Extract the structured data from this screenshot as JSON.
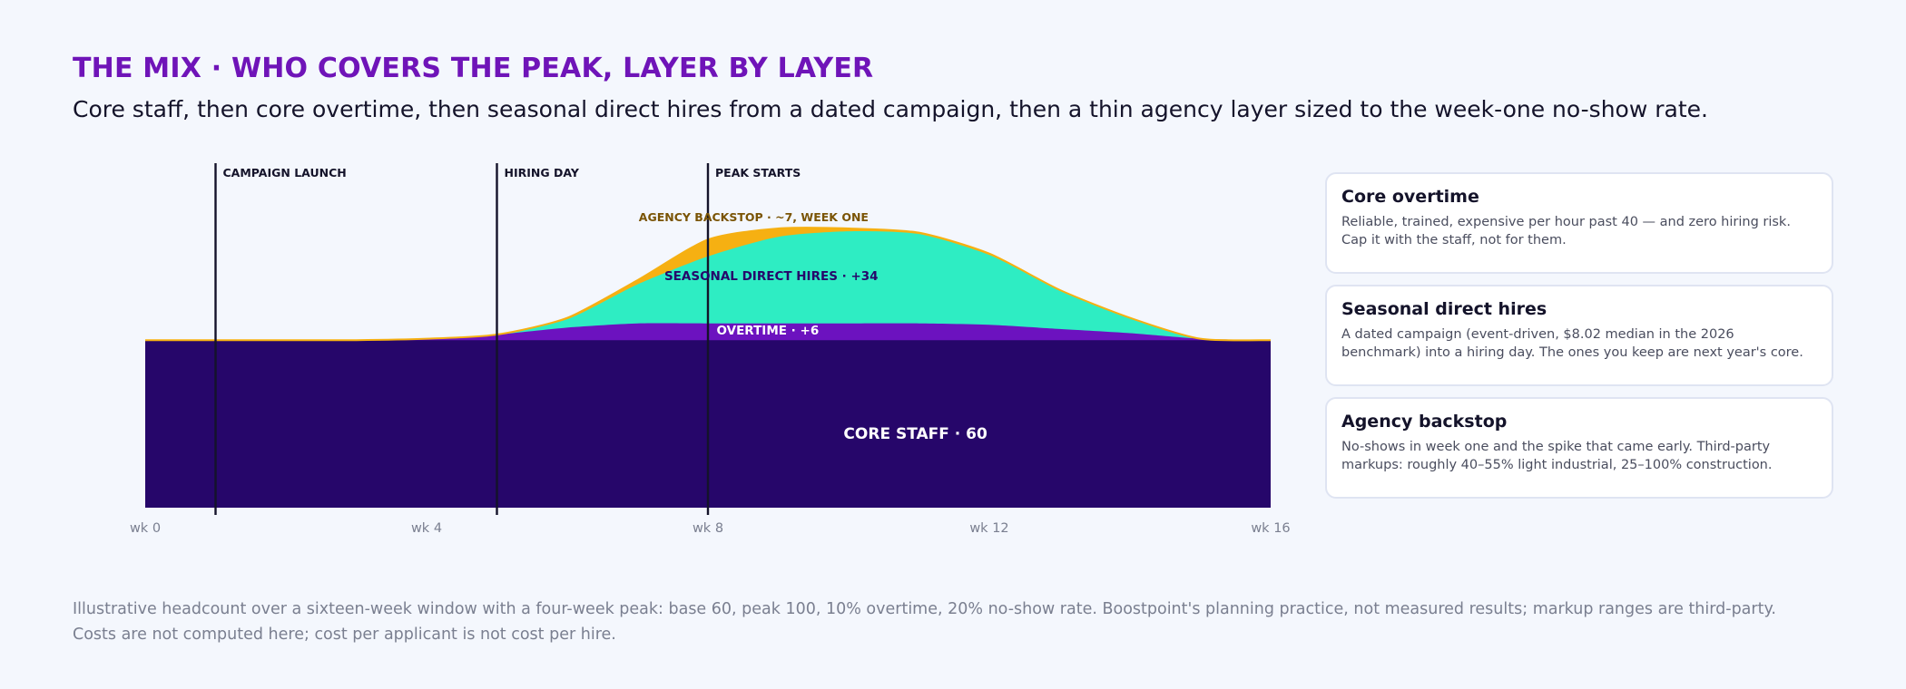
{
  "header": {
    "title": "THE MIX · WHO COVERS THE PEAK, LAYER BY LAYER",
    "subtitle": "Core staff, then core overtime, then seasonal direct hires from a dated campaign, then a thin agency layer sized to the week-one no-show rate."
  },
  "chart_data": {
    "type": "area",
    "stacked": true,
    "title": "",
    "xlabel": "",
    "ylabel": "",
    "x": [
      0,
      1,
      2,
      3,
      4,
      5,
      6,
      7,
      8,
      9,
      10,
      11,
      12,
      13,
      14,
      15,
      16
    ],
    "x_tick_labels": [
      {
        "x": 0,
        "label": "wk 0"
      },
      {
        "x": 4,
        "label": "wk 4"
      },
      {
        "x": 8,
        "label": "wk 8"
      },
      {
        "x": 12,
        "label": "wk 12"
      },
      {
        "x": 16,
        "label": "wk 16"
      }
    ],
    "ylim": [
      0,
      100
    ],
    "grid": false,
    "legend": "none",
    "series": [
      {
        "key": "core",
        "label": "CORE STAFF · 60",
        "color": "#26066a",
        "label_color": "#ffffff",
        "values": [
          60,
          60,
          60,
          60,
          60,
          60,
          60,
          60,
          60,
          60,
          60,
          60,
          60,
          60,
          60,
          60,
          60
        ]
      },
      {
        "key": "overtime",
        "label": "OVERTIME · +6",
        "color": "#6c12bf",
        "label_color": "#ffffff",
        "values": [
          0,
          0,
          0,
          0,
          0.5,
          2,
          4.5,
          6,
          6,
          6,
          6,
          6,
          5.5,
          4,
          2.5,
          0.5,
          0
        ]
      },
      {
        "key": "seasonal",
        "label": "SEASONAL DIRECT HIRES · +34",
        "color": "#2eedc3",
        "label_color": "#26066a",
        "values": [
          0,
          0,
          0,
          0,
          0,
          0,
          3,
          14,
          24,
          31,
          33,
          32,
          25,
          14,
          5.5,
          0,
          0
        ]
      },
      {
        "key": "agency",
        "label": "AGENCY BACKSTOP · ~7, WEEK ONE",
        "color": "#f6b012",
        "label_color": "#7a5405",
        "values": [
          0,
          0,
          0,
          0,
          0,
          0,
          0.5,
          1.5,
          6,
          3,
          1,
          0.5,
          0.5,
          0,
          0,
          0,
          0
        ]
      }
    ],
    "events": [
      {
        "x": 1,
        "label": "CAMPAIGN LAUNCH"
      },
      {
        "x": 5,
        "label": "HIRING DAY"
      },
      {
        "x": 8,
        "label": "PEAK STARTS"
      }
    ]
  },
  "cards": [
    {
      "title": "Core overtime",
      "lines": [
        "Reliable, trained, expensive per hour past 40 — and zero hiring risk.",
        "Cap it with the staff, not for them."
      ]
    },
    {
      "title": "Seasonal direct hires",
      "lines": [
        "A dated campaign (event-driven, $8.02 median in the 2026",
        "benchmark) into a hiring day. The ones you keep are next year's core."
      ]
    },
    {
      "title": "Agency backstop",
      "lines": [
        "No-shows in week one and the spike that came early. Third-party",
        "markups: roughly 40–55% light industrial, 25–100% construction."
      ]
    }
  ],
  "footnote": {
    "line1": "Illustrative headcount over a sixteen-week window with a four-week peak: base 60, peak 100, 10% overtime, 20% no-show rate. Boostpoint's planning practice, not measured results; markup ranges are third-party.",
    "line2": "Costs are not computed here; cost per applicant is not cost per hire."
  }
}
